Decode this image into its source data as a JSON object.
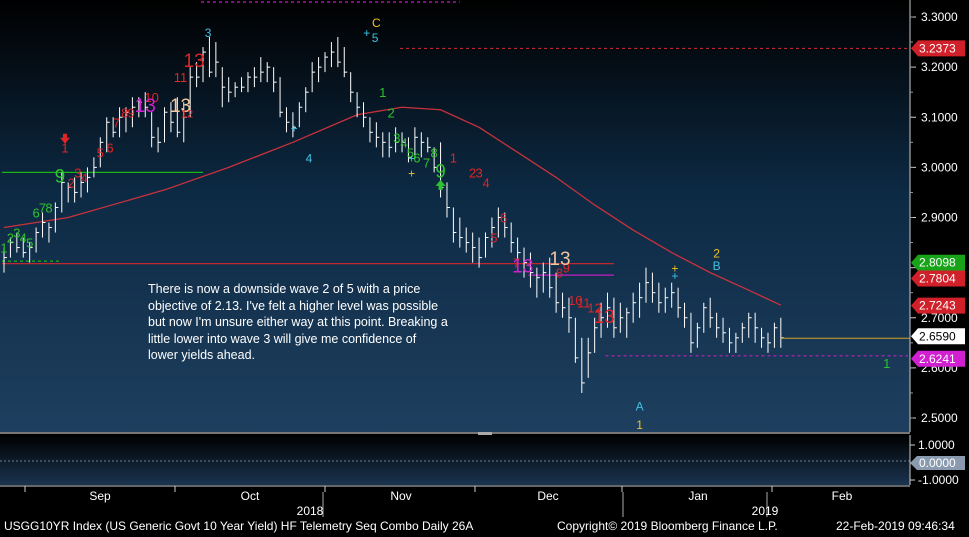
{
  "chart_data": {
    "type": "ohlc",
    "subtype": "weekly-style price bars with DeMark sequential counts",
    "security": "USGG10YR Index (US Generic Govt 10 Year Yield) HF Telemetry Seq Combo  Daily 26A",
    "copyright": "Copyright© 2019 Bloomberg Finance L.P.",
    "timestamp": "22-Feb-2019 09:46:34",
    "x_months": [
      "Sep",
      "Oct",
      "Nov",
      "Dec",
      "Jan",
      "Feb"
    ],
    "x_years": [
      "2018",
      "2019"
    ],
    "y_ticks": [
      "3.3000",
      "3.2000",
      "3.1000",
      "3.0000",
      "2.9000",
      "2.8000",
      "2.7000",
      "2.6000",
      "2.5000"
    ],
    "ylim": [
      2.46,
      3.34
    ],
    "price_labels": [
      {
        "text": "3.2373",
        "value": 3.2373,
        "color": "#d0202a"
      },
      {
        "text": "2.8098",
        "value": 2.8098,
        "color": "#19a319"
      },
      {
        "text": "2.7804",
        "value": 2.7804,
        "color": "#d0202a"
      },
      {
        "text": "2.7243",
        "value": 2.7243,
        "color": "#d0202a"
      },
      {
        "text": "2.6590",
        "value": 2.659,
        "color": "#ffffff"
      },
      {
        "text": "2.6241",
        "value": 2.6241,
        "color": "#d020d0"
      }
    ],
    "lower_panel_ticks": [
      "1.0000",
      "0.0000",
      "-1.0000"
    ],
    "lower_panel_value": "0.0000",
    "annotation": "There is now a downside wave 2 of 5  with a price objective of 2.13.  I've felt a higher level was possible but now I'm unsure either way at this point.  Breaking a little lower into wave 3 will give me confidence of lower yields ahead.",
    "bars": [
      [
        2.84,
        2.79,
        2.82
      ],
      [
        2.86,
        2.82,
        2.85
      ],
      [
        2.87,
        2.83,
        2.84
      ],
      [
        2.86,
        2.82,
        2.83
      ],
      [
        2.85,
        2.81,
        2.84
      ],
      [
        2.88,
        2.83,
        2.87
      ],
      [
        2.91,
        2.86,
        2.89
      ],
      [
        2.89,
        2.85,
        2.88
      ],
      [
        2.93,
        2.87,
        2.92
      ],
      [
        2.99,
        2.91,
        2.97
      ],
      [
        2.97,
        2.93,
        2.96
      ],
      [
        2.98,
        2.93,
        2.95
      ],
      [
        2.99,
        2.94,
        2.97
      ],
      [
        3.0,
        2.95,
        2.98
      ],
      [
        3.02,
        2.98,
        3.0
      ],
      [
        3.06,
        3.0,
        3.05
      ],
      [
        3.1,
        3.03,
        3.09
      ],
      [
        3.1,
        3.06,
        3.07
      ],
      [
        3.12,
        3.06,
        3.1
      ],
      [
        3.12,
        3.07,
        3.11
      ],
      [
        3.14,
        3.08,
        3.12
      ],
      [
        3.14,
        3.1,
        3.13
      ],
      [
        3.15,
        3.1,
        3.12
      ],
      [
        3.11,
        3.04,
        3.06
      ],
      [
        3.08,
        3.03,
        3.05
      ],
      [
        3.12,
        3.05,
        3.11
      ],
      [
        3.13,
        3.07,
        3.09
      ],
      [
        3.14,
        3.06,
        3.07
      ],
      [
        3.13,
        3.05,
        3.1
      ],
      [
        3.2,
        3.1,
        3.18
      ],
      [
        3.21,
        3.16,
        3.18
      ],
      [
        3.24,
        3.17,
        3.23
      ],
      [
        3.26,
        3.18,
        3.19
      ],
      [
        3.25,
        3.18,
        3.21
      ],
      [
        3.2,
        3.12,
        3.16
      ],
      [
        3.18,
        3.13,
        3.15
      ],
      [
        3.17,
        3.14,
        3.16
      ],
      [
        3.18,
        3.15,
        3.16
      ],
      [
        3.19,
        3.15,
        3.18
      ],
      [
        3.2,
        3.16,
        3.18
      ],
      [
        3.22,
        3.17,
        3.19
      ],
      [
        3.21,
        3.17,
        3.2
      ],
      [
        3.2,
        3.15,
        3.17
      ],
      [
        3.18,
        3.1,
        3.11
      ],
      [
        3.12,
        3.07,
        3.09
      ],
      [
        3.11,
        3.06,
        3.08
      ],
      [
        3.13,
        3.08,
        3.12
      ],
      [
        3.16,
        3.11,
        3.15
      ],
      [
        3.21,
        3.15,
        3.19
      ],
      [
        3.22,
        3.17,
        3.2
      ],
      [
        3.23,
        3.19,
        3.22
      ],
      [
        3.25,
        3.2,
        3.23
      ],
      [
        3.26,
        3.2,
        3.21
      ],
      [
        3.24,
        3.18,
        3.19
      ],
      [
        3.19,
        3.13,
        3.15
      ],
      [
        3.15,
        3.1,
        3.12
      ],
      [
        3.13,
        3.08,
        3.1
      ],
      [
        3.1,
        3.05,
        3.07
      ],
      [
        3.09,
        3.04,
        3.06
      ],
      [
        3.07,
        3.02,
        3.05
      ],
      [
        3.07,
        3.02,
        3.04
      ],
      [
        3.08,
        3.03,
        3.05
      ],
      [
        3.07,
        3.03,
        3.05
      ],
      [
        3.06,
        3.01,
        3.02
      ],
      [
        3.08,
        3.02,
        3.06
      ],
      [
        3.07,
        3.02,
        3.05
      ],
      [
        3.06,
        3.03,
        3.04
      ],
      [
        3.04,
        2.99,
        3.0
      ],
      [
        3.05,
        2.94,
        2.96
      ],
      [
        2.97,
        2.9,
        2.92
      ],
      [
        2.92,
        2.85,
        2.87
      ],
      [
        2.9,
        2.84,
        2.86
      ],
      [
        2.88,
        2.83,
        2.85
      ],
      [
        2.87,
        2.81,
        2.84
      ],
      [
        2.86,
        2.8,
        2.82
      ],
      [
        2.87,
        2.82,
        2.86
      ],
      [
        2.9,
        2.84,
        2.88
      ],
      [
        2.92,
        2.86,
        2.9
      ],
      [
        2.91,
        2.86,
        2.88
      ],
      [
        2.89,
        2.83,
        2.85
      ],
      [
        2.86,
        2.81,
        2.83
      ],
      [
        2.84,
        2.78,
        2.81
      ],
      [
        2.83,
        2.76,
        2.79
      ],
      [
        2.8,
        2.74,
        2.78
      ],
      [
        2.81,
        2.75,
        2.79
      ],
      [
        2.82,
        2.74,
        2.76
      ],
      [
        2.79,
        2.71,
        2.73
      ],
      [
        2.75,
        2.7,
        2.72
      ],
      [
        2.74,
        2.67,
        2.7
      ],
      [
        2.7,
        2.61,
        2.62
      ],
      [
        2.66,
        2.55,
        2.57
      ],
      [
        2.66,
        2.58,
        2.63
      ],
      [
        2.7,
        2.63,
        2.68
      ],
      [
        2.73,
        2.66,
        2.7
      ],
      [
        2.75,
        2.68,
        2.72
      ],
      [
        2.74,
        2.66,
        2.68
      ],
      [
        2.73,
        2.67,
        2.7
      ],
      [
        2.72,
        2.66,
        2.71
      ],
      [
        2.75,
        2.69,
        2.73
      ],
      [
        2.77,
        2.7,
        2.74
      ],
      [
        2.8,
        2.73,
        2.77
      ],
      [
        2.79,
        2.73,
        2.75
      ],
      [
        2.77,
        2.71,
        2.73
      ],
      [
        2.76,
        2.71,
        2.74
      ],
      [
        2.77,
        2.72,
        2.75
      ],
      [
        2.76,
        2.7,
        2.72
      ],
      [
        2.73,
        2.68,
        2.7
      ],
      [
        2.71,
        2.63,
        2.65
      ],
      [
        2.69,
        2.64,
        2.68
      ],
      [
        2.73,
        2.67,
        2.72
      ],
      [
        2.74,
        2.68,
        2.7
      ],
      [
        2.71,
        2.66,
        2.68
      ],
      [
        2.7,
        2.65,
        2.67
      ],
      [
        2.68,
        2.63,
        2.65
      ],
      [
        2.67,
        2.63,
        2.66
      ],
      [
        2.69,
        2.65,
        2.68
      ],
      [
        2.71,
        2.66,
        2.7
      ],
      [
        2.71,
        2.65,
        2.68
      ],
      [
        2.68,
        2.64,
        2.66
      ],
      [
        2.67,
        2.63,
        2.65
      ],
      [
        2.69,
        2.64,
        2.68
      ],
      [
        2.7,
        2.64,
        2.66
      ]
    ],
    "moving_average": [
      [
        0,
        2.88
      ],
      [
        10,
        2.9
      ],
      [
        25,
        2.955
      ],
      [
        35,
        3.0
      ],
      [
        45,
        3.05
      ],
      [
        55,
        3.105
      ],
      [
        62,
        3.12
      ],
      [
        68,
        3.115
      ],
      [
        74,
        3.08
      ],
      [
        80,
        3.03
      ],
      [
        86,
        2.98
      ],
      [
        92,
        2.925
      ],
      [
        98,
        2.875
      ],
      [
        104,
        2.83
      ],
      [
        110,
        2.79
      ],
      [
        116,
        2.755
      ],
      [
        121,
        2.725
      ]
    ],
    "levels": [
      {
        "from": 0,
        "to": 31,
        "value": 2.99,
        "color": "#18b418",
        "style": "solid"
      },
      {
        "from": 0,
        "to": 9,
        "value": 2.813,
        "color": "#18b418",
        "style": "dashed"
      },
      {
        "from": 0,
        "to": 95,
        "value": 2.808,
        "color": "#c02830",
        "style": "solid"
      },
      {
        "from": 62,
        "to": 142,
        "value": 3.2373,
        "color": "#c02830",
        "style": "dashed"
      },
      {
        "from": 31,
        "to": 71,
        "value": 3.33,
        "color": "#c020c0",
        "style": "dashed"
      },
      {
        "from": 82,
        "to": 95,
        "value": 2.785,
        "color": "#c020c0",
        "style": "solid"
      },
      {
        "from": 94,
        "to": 144,
        "value": 2.6241,
        "color": "#c020c0",
        "style": "dashed"
      }
    ],
    "counts": [
      {
        "t": "1",
        "x": 0,
        "v": 2.83,
        "c": "#2fc22f",
        "s": 13
      },
      {
        "t": "2",
        "x": 1,
        "v": 2.85,
        "c": "#2fc22f",
        "s": 13
      },
      {
        "t": "3",
        "x": 2,
        "v": 2.86,
        "c": "#2fc22f",
        "s": 13
      },
      {
        "t": "4",
        "x": 3,
        "v": 2.85,
        "c": "#2fc22f",
        "s": 13
      },
      {
        "t": "5",
        "x": 4,
        "v": 2.84,
        "c": "#2fc22f",
        "s": 13
      },
      {
        "t": "6",
        "x": 5,
        "v": 2.9,
        "c": "#2fc22f",
        "s": 13
      },
      {
        "t": "7",
        "x": 6,
        "v": 2.91,
        "c": "#2fc22f",
        "s": 13
      },
      {
        "t": "8",
        "x": 7,
        "v": 2.91,
        "c": "#2fc22f",
        "s": 13
      },
      {
        "t": "9",
        "x": 8.7,
        "v": 2.97,
        "c": "#2fc22f",
        "s": 19
      },
      {
        "t": "1",
        "x": 9.5,
        "v": 3.03,
        "c": "#e02525",
        "s": 13
      },
      {
        "t": "2",
        "x": 10.5,
        "v": 2.96,
        "c": "#e02525",
        "s": 13
      },
      {
        "t": "3",
        "x": 11.5,
        "v": 2.98,
        "c": "#e02525",
        "s": 13
      },
      {
        "t": "4",
        "x": 12.5,
        "v": 2.97,
        "c": "#e02525",
        "s": 13
      },
      {
        "t": "5",
        "x": 15,
        "v": 3.02,
        "c": "#e02525",
        "s": 13
      },
      {
        "t": "6",
        "x": 16.5,
        "v": 3.03,
        "c": "#e02525",
        "s": 13
      },
      {
        "t": "7",
        "x": 17.5,
        "v": 3.08,
        "c": "#e02525",
        "s": 13
      },
      {
        "t": "8",
        "x": 18.8,
        "v": 3.1,
        "c": "#e02525",
        "s": 13
      },
      {
        "t": "9",
        "x": 19.8,
        "v": 3.1,
        "c": "#e02525",
        "s": 13
      },
      {
        "t": "10",
        "x": 23,
        "v": 3.13,
        "c": "#e02525",
        "s": 13
      },
      {
        "t": "13",
        "x": 22,
        "v": 3.11,
        "c": "#d020d0",
        "s": 19
      },
      {
        "t": "13",
        "x": 27.5,
        "v": 3.11,
        "c": "#f0c8a0",
        "s": 19
      },
      {
        "t": "12",
        "x": 28.5,
        "v": 3.1,
        "c": "#e02525",
        "s": 11
      },
      {
        "t": "11",
        "x": 27.5,
        "v": 3.17,
        "c": "#e02525",
        "s": 13
      },
      {
        "t": "13",
        "x": 29.6,
        "v": 3.2,
        "c": "#e02525",
        "s": 19
      },
      {
        "t": "3",
        "x": 31.8,
        "v": 3.26,
        "c": "#40c0e0",
        "s": 12
      },
      {
        "t": "+",
        "x": 45.2,
        "v": 3.07,
        "c": "#40c0e0",
        "s": 12
      },
      {
        "t": "4",
        "x": 47.5,
        "v": 3.01,
        "c": "#40c0e0",
        "s": 12
      },
      {
        "t": "C",
        "x": 58,
        "v": 3.28,
        "c": "#f0c020",
        "s": 12
      },
      {
        "t": "+",
        "x": 56.5,
        "v": 3.26,
        "c": "#40c0e0",
        "s": 12
      },
      {
        "t": "5",
        "x": 57.8,
        "v": 3.25,
        "c": "#40c0e0",
        "s": 12
      },
      {
        "t": "1",
        "x": 59,
        "v": 3.14,
        "c": "#2fc22f",
        "s": 13
      },
      {
        "t": "2",
        "x": 60.3,
        "v": 3.1,
        "c": "#2fc22f",
        "s": 13
      },
      {
        "t": "3",
        "x": 61.2,
        "v": 3.05,
        "c": "#2fc22f",
        "s": 13
      },
      {
        "t": "4",
        "x": 62.3,
        "v": 3.04,
        "c": "#2fc22f",
        "s": 13
      },
      {
        "t": "5",
        "x": 63.3,
        "v": 3.02,
        "c": "#2fc22f",
        "s": 13
      },
      {
        "t": "6",
        "x": 64.3,
        "v": 3.01,
        "c": "#2fc22f",
        "s": 13
      },
      {
        "t": "7",
        "x": 65.8,
        "v": 3.0,
        "c": "#2fc22f",
        "s": 13
      },
      {
        "t": "8",
        "x": 67,
        "v": 3.02,
        "c": "#2fc22f",
        "s": 13
      },
      {
        "t": "9",
        "x": 68,
        "v": 2.98,
        "c": "#2fc22f",
        "s": 19
      },
      {
        "t": "+",
        "x": 63.5,
        "v": 3.01,
        "c": "#40c0e0",
        "s": 12
      },
      {
        "t": "+",
        "x": 63.5,
        "v": 2.98,
        "c": "#f0c020",
        "s": 12
      },
      {
        "t": "1",
        "x": 70,
        "v": 3.01,
        "c": "#e02525",
        "s": 13
      },
      {
        "t": "2",
        "x": 73,
        "v": 2.98,
        "c": "#e02525",
        "s": 13
      },
      {
        "t": "3",
        "x": 74,
        "v": 2.98,
        "c": "#e02525",
        "s": 13
      },
      {
        "t": "4",
        "x": 75.1,
        "v": 2.96,
        "c": "#e02525",
        "s": 13
      },
      {
        "t": "5",
        "x": 76.3,
        "v": 2.85,
        "c": "#e02525",
        "s": 13
      },
      {
        "t": "6",
        "x": 77.8,
        "v": 2.89,
        "c": "#e02525",
        "s": 13
      },
      {
        "t": "7",
        "x": 79.8,
        "v": 2.8,
        "c": "#e02525",
        "s": 13
      },
      {
        "t": "8",
        "x": 86.5,
        "v": 2.78,
        "c": "#e02525",
        "s": 13
      },
      {
        "t": "9",
        "x": 87.6,
        "v": 2.79,
        "c": "#e02525",
        "s": 13
      },
      {
        "t": "10",
        "x": 89,
        "v": 2.725,
        "c": "#e02525",
        "s": 13
      },
      {
        "t": "11",
        "x": 90.3,
        "v": 2.72,
        "c": "#e02525",
        "s": 13
      },
      {
        "t": "12",
        "x": 92,
        "v": 2.71,
        "c": "#e02525",
        "s": 13
      },
      {
        "t": "13",
        "x": 80.8,
        "v": 2.79,
        "c": "#d020d0",
        "s": 19
      },
      {
        "t": "13",
        "x": 86.6,
        "v": 2.805,
        "c": "#f0c8a0",
        "s": 19
      },
      {
        "t": "13",
        "x": 93.5,
        "v": 2.69,
        "c": "#e02525",
        "s": 19
      },
      {
        "t": "A",
        "x": 99,
        "v": 2.515,
        "c": "#40c0e0",
        "s": 12
      },
      {
        "t": "1",
        "x": 99,
        "v": 2.478,
        "c": "#f0c020",
        "s": 12
      },
      {
        "t": "+",
        "x": 104.5,
        "v": 2.79,
        "c": "#f0c020",
        "s": 12
      },
      {
        "t": "+",
        "x": 104.5,
        "v": 2.775,
        "c": "#40c0e0",
        "s": 12
      },
      {
        "t": "2",
        "x": 111,
        "v": 2.82,
        "c": "#f0c020",
        "s": 12
      },
      {
        "t": "B",
        "x": 111,
        "v": 2.795,
        "c": "#40c0e0",
        "s": 12
      },
      {
        "t": "1",
        "x": 137.5,
        "v": 2.6,
        "c": "#2fc22f",
        "s": 13
      }
    ],
    "arrows": [
      {
        "x": 9.5,
        "v": 3.055,
        "dir": "down",
        "color": "#e02525"
      },
      {
        "x": 68,
        "v": 2.965,
        "dir": "up",
        "color": "#2fc22f"
      }
    ]
  }
}
